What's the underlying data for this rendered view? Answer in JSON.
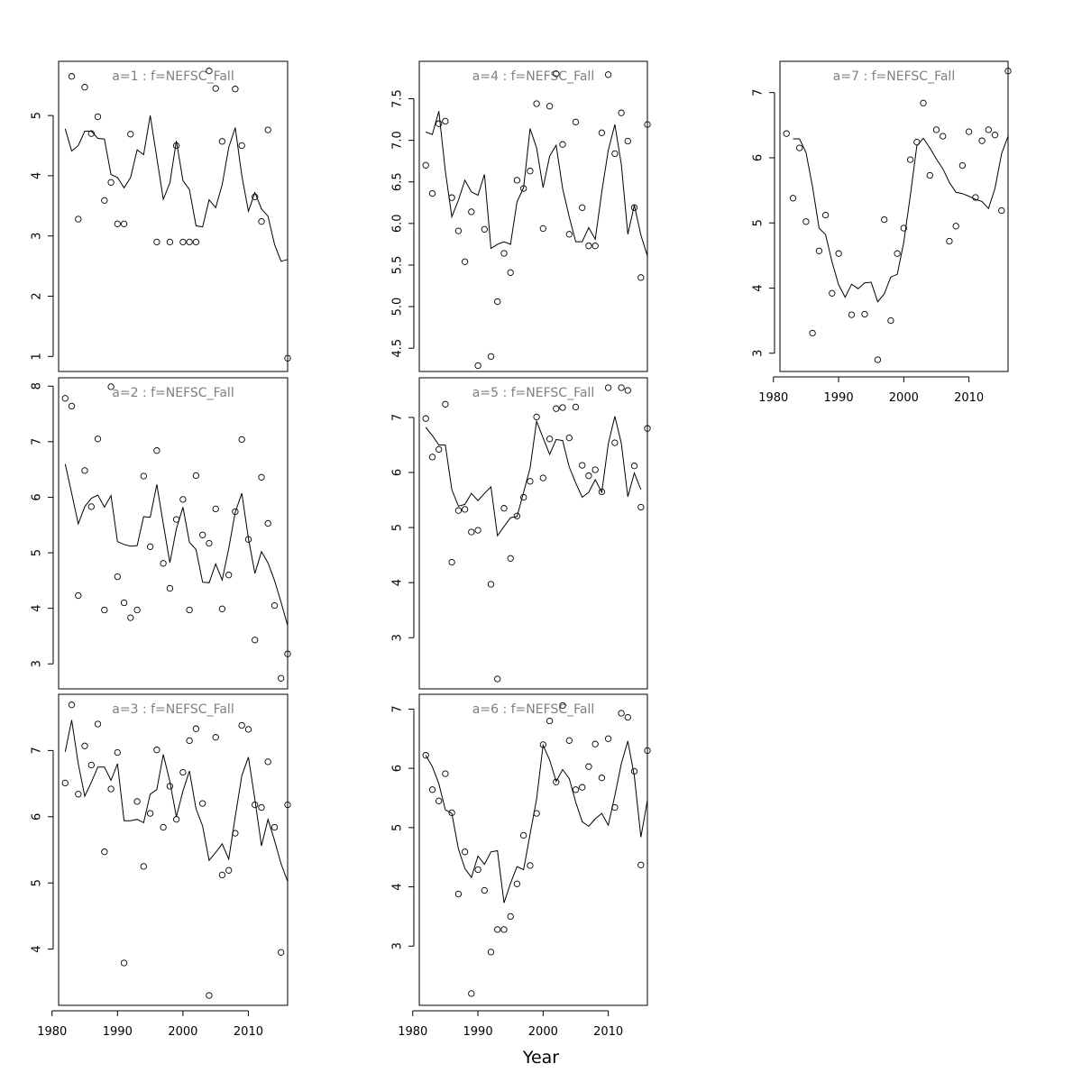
{
  "xlabel": "Year",
  "chart_data": [
    {
      "title": "a=1 : f=NEFSC_Fall",
      "type": "scatter+line",
      "xlim": [
        1981,
        2016
      ],
      "ylim": [
        0.75,
        5.9
      ],
      "yticks": [
        1,
        2,
        3,
        4,
        5
      ],
      "show_x_axis": false,
      "x": [
        1982,
        1983,
        1984,
        1985,
        1986,
        1987,
        1988,
        1989,
        1990,
        1991,
        1992,
        1993,
        1994,
        1995,
        1996,
        1997,
        1998,
        1999,
        2000,
        2001,
        2002,
        2003,
        2004,
        2005,
        2006,
        2007,
        2008,
        2009,
        2010,
        2011,
        2012,
        2013,
        2014,
        2015,
        2016
      ],
      "observed": [
        null,
        5.65,
        3.28,
        5.47,
        4.7,
        4.98,
        3.59,
        3.89,
        3.2,
        3.2,
        4.69,
        null,
        null,
        null,
        2.9,
        null,
        2.9,
        4.5,
        2.9,
        2.9,
        2.9,
        null,
        5.74,
        5.45,
        4.57,
        null,
        5.44,
        4.5,
        null,
        3.65,
        3.24,
        4.76,
        null,
        null,
        0.97
      ],
      "predicted": [
        4.78,
        4.41,
        4.5,
        4.74,
        4.74,
        4.62,
        4.61,
        4.02,
        3.97,
        3.8,
        3.97,
        4.43,
        4.35,
        5.0,
        4.3,
        3.61,
        3.88,
        4.58,
        3.92,
        3.77,
        3.17,
        3.15,
        3.6,
        3.47,
        3.85,
        4.47,
        4.8,
        4.0,
        3.41,
        3.72,
        3.45,
        3.33,
        2.86,
        2.58,
        2.61
      ]
    },
    {
      "title": "a=2 : f=NEFSC_Fall",
      "type": "scatter+line",
      "xlim": [
        1981,
        2016
      ],
      "ylim": [
        2.55,
        8.15
      ],
      "yticks": [
        3,
        4,
        5,
        6,
        7,
        8
      ],
      "show_x_axis": false,
      "x": [
        1982,
        1983,
        1984,
        1985,
        1986,
        1987,
        1988,
        1989,
        1990,
        1991,
        1992,
        1993,
        1994,
        1995,
        1996,
        1997,
        1998,
        1999,
        2000,
        2001,
        2002,
        2003,
        2004,
        2005,
        2006,
        2007,
        2008,
        2009,
        2010,
        2011,
        2012,
        2013,
        2014,
        2015,
        2016
      ],
      "observed": [
        7.78,
        7.64,
        4.23,
        6.48,
        5.83,
        7.05,
        3.97,
        7.99,
        4.57,
        4.1,
        3.83,
        3.97,
        6.38,
        5.11,
        6.84,
        4.81,
        4.36,
        5.6,
        5.96,
        3.97,
        6.39,
        5.32,
        5.17,
        5.79,
        3.99,
        4.6,
        5.74,
        7.04,
        5.24,
        3.43,
        6.36,
        5.53,
        4.05,
        2.74,
        3.18
      ],
      "predicted": [
        6.6,
        6.07,
        5.52,
        5.83,
        5.98,
        6.04,
        5.82,
        6.03,
        5.2,
        5.15,
        5.12,
        5.13,
        5.65,
        5.64,
        6.23,
        5.52,
        4.82,
        5.43,
        5.82,
        5.19,
        5.06,
        4.47,
        4.46,
        4.8,
        4.51,
        5.08,
        5.73,
        6.07,
        5.26,
        4.63,
        5.02,
        4.82,
        4.5,
        4.11,
        3.69
      ]
    },
    {
      "title": "a=3 : f=NEFSC_Fall",
      "type": "scatter+line",
      "xlim": [
        1981,
        2016
      ],
      "ylim": [
        3.15,
        7.85
      ],
      "yticks": [
        4,
        5,
        6,
        7
      ],
      "show_x_axis": true,
      "xticks": [
        1980,
        1990,
        2000,
        2010
      ],
      "x": [
        1982,
        1983,
        1984,
        1985,
        1986,
        1987,
        1988,
        1989,
        1990,
        1991,
        1992,
        1993,
        1994,
        1995,
        1996,
        1997,
        1998,
        1999,
        2000,
        2001,
        2002,
        2003,
        2004,
        2005,
        2006,
        2007,
        2008,
        2009,
        2010,
        2011,
        2012,
        2013,
        2014,
        2015,
        2016
      ],
      "observed": [
        6.51,
        7.69,
        6.34,
        7.07,
        6.78,
        7.4,
        5.47,
        6.42,
        6.97,
        3.79,
        null,
        6.23,
        5.25,
        6.05,
        7.01,
        5.84,
        6.46,
        5.96,
        6.67,
        7.15,
        7.33,
        6.2,
        3.3,
        7.2,
        5.12,
        5.19,
        5.75,
        7.38,
        7.32,
        6.18,
        6.14,
        6.83,
        5.84,
        3.95,
        6.18
      ],
      "predicted": [
        6.98,
        7.46,
        6.8,
        6.31,
        6.52,
        6.75,
        6.75,
        6.55,
        6.8,
        5.94,
        5.94,
        5.96,
        5.91,
        6.34,
        6.41,
        6.94,
        6.53,
        6.0,
        6.39,
        6.69,
        6.12,
        5.86,
        5.34,
        5.46,
        5.59,
        5.36,
        6.0,
        6.62,
        6.9,
        6.26,
        5.56,
        5.96,
        5.64,
        5.29,
        5.02
      ]
    },
    {
      "title": "a=4 : f=NEFSC_Fall",
      "type": "scatter+line",
      "xlim": [
        1981,
        2016
      ],
      "ylim": [
        4.22,
        7.95
      ],
      "yticks": [
        4.5,
        5.0,
        5.5,
        6.0,
        6.5,
        7.0,
        7.5
      ],
      "ytick_labels": [
        "4.5",
        "5.0",
        "5.5",
        "6.0",
        "6.5",
        "7.0",
        "7.5"
      ],
      "show_x_axis": false,
      "x": [
        1982,
        1983,
        1984,
        1985,
        1986,
        1987,
        1988,
        1989,
        1990,
        1991,
        1992,
        1993,
        1994,
        1995,
        1996,
        1997,
        1998,
        1999,
        2000,
        2001,
        2002,
        2003,
        2004,
        2005,
        2006,
        2007,
        2008,
        2009,
        2010,
        2011,
        2012,
        2013,
        2014,
        2015,
        2016
      ],
      "observed": [
        6.7,
        6.36,
        7.2,
        7.23,
        6.31,
        5.91,
        5.54,
        6.14,
        4.29,
        5.93,
        4.4,
        5.06,
        5.64,
        5.41,
        6.52,
        6.42,
        6.63,
        7.44,
        5.94,
        7.41,
        7.8,
        6.95,
        5.87,
        7.22,
        6.19,
        5.73,
        5.73,
        7.09,
        7.79,
        6.84,
        7.33,
        6.99,
        6.19,
        5.35,
        7.19
      ],
      "predicted": [
        7.1,
        7.07,
        7.35,
        6.63,
        6.08,
        6.28,
        6.52,
        6.38,
        6.34,
        6.59,
        5.7,
        5.75,
        5.78,
        5.75,
        6.26,
        6.43,
        7.14,
        6.91,
        6.43,
        6.81,
        6.94,
        6.42,
        6.08,
        5.78,
        5.78,
        5.95,
        5.81,
        6.38,
        6.88,
        7.19,
        6.71,
        5.87,
        6.22,
        5.86,
        5.61
      ]
    },
    {
      "title": "a=5 : f=NEFSC_Fall",
      "type": "scatter+line",
      "xlim": [
        1981,
        2016
      ],
      "ylim": [
        2.07,
        7.72
      ],
      "yticks": [
        3,
        4,
        5,
        6,
        7
      ],
      "show_x_axis": false,
      "x": [
        1982,
        1983,
        1984,
        1985,
        1986,
        1987,
        1988,
        1989,
        1990,
        1991,
        1992,
        1993,
        1994,
        1995,
        1996,
        1997,
        1998,
        1999,
        2000,
        2001,
        2002,
        2003,
        2004,
        2005,
        2006,
        2007,
        2008,
        2009,
        2010,
        2011,
        2012,
        2013,
        2014,
        2015,
        2016
      ],
      "observed": [
        6.98,
        6.28,
        6.42,
        7.24,
        4.37,
        5.31,
        5.33,
        4.92,
        4.95,
        null,
        3.97,
        2.25,
        5.35,
        4.44,
        5.21,
        5.55,
        5.84,
        7.01,
        5.9,
        6.61,
        7.16,
        7.18,
        6.63,
        7.19,
        6.13,
        5.94,
        6.05,
        5.65,
        7.54,
        6.54,
        7.54,
        7.49,
        6.12,
        5.37,
        6.8
      ],
      "predicted": [
        6.82,
        6.67,
        6.5,
        6.5,
        5.69,
        5.39,
        5.42,
        5.62,
        5.49,
        5.62,
        5.74,
        4.85,
        5.02,
        5.18,
        5.2,
        5.64,
        6.08,
        6.93,
        6.63,
        6.33,
        6.6,
        6.58,
        6.1,
        5.81,
        5.55,
        5.64,
        5.87,
        5.64,
        6.52,
        7.02,
        6.53,
        5.56,
        5.99,
        5.69,
        null
      ]
    },
    {
      "title": "a=6 : f=NEFSC_Fall",
      "type": "scatter+line",
      "xlim": [
        1981,
        2016
      ],
      "ylim": [
        2.0,
        7.25
      ],
      "yticks": [
        3,
        4,
        5,
        6,
        7
      ],
      "show_x_axis": true,
      "xticks": [
        1980,
        1990,
        2000,
        2010
      ],
      "x": [
        1982,
        1983,
        1984,
        1985,
        1986,
        1987,
        1988,
        1989,
        1990,
        1991,
        1992,
        1993,
        1994,
        1995,
        1996,
        1997,
        1998,
        1999,
        2000,
        2001,
        2002,
        2003,
        2004,
        2005,
        2006,
        2007,
        2008,
        2009,
        2010,
        2011,
        2012,
        2013,
        2014,
        2015,
        2016
      ],
      "observed": [
        6.22,
        5.64,
        5.45,
        5.91,
        5.25,
        3.88,
        4.59,
        2.2,
        4.29,
        3.94,
        2.9,
        3.28,
        3.28,
        3.5,
        4.05,
        4.87,
        4.36,
        5.24,
        6.4,
        6.8,
        5.77,
        7.06,
        6.47,
        5.64,
        5.68,
        6.03,
        6.41,
        5.84,
        6.5,
        5.34,
        6.93,
        6.86,
        5.95,
        4.37,
        6.3
      ],
      "predicted": [
        6.22,
        6.03,
        5.74,
        5.3,
        5.24,
        4.64,
        4.31,
        4.16,
        4.52,
        4.38,
        4.59,
        4.61,
        3.73,
        4.06,
        4.34,
        4.29,
        4.89,
        5.48,
        6.39,
        6.14,
        5.78,
        5.98,
        5.83,
        5.43,
        5.1,
        5.02,
        5.15,
        5.24,
        5.04,
        5.54,
        6.08,
        6.46,
        5.87,
        4.84,
        5.46
      ]
    },
    {
      "title": "a=7 : f=NEFSC_Fall",
      "type": "scatter+line",
      "xlim": [
        1981,
        2016
      ],
      "ylim": [
        2.72,
        7.48
      ],
      "yticks": [
        3,
        4,
        5,
        6,
        7
      ],
      "show_x_axis": true,
      "xticks": [
        1980,
        1990,
        2000,
        2010
      ],
      "x": [
        1982,
        1983,
        1984,
        1985,
        1986,
        1987,
        1988,
        1989,
        1990,
        1991,
        1992,
        1993,
        1994,
        1995,
        1996,
        1997,
        1998,
        1999,
        2000,
        2001,
        2002,
        2003,
        2004,
        2005,
        2006,
        2007,
        2008,
        2009,
        2010,
        2011,
        2012,
        2013,
        2014,
        2015,
        2016
      ],
      "observed": [
        6.37,
        5.38,
        6.15,
        5.02,
        3.31,
        4.57,
        5.12,
        3.92,
        4.53,
        null,
        3.59,
        null,
        3.6,
        null,
        2.9,
        5.05,
        3.5,
        4.53,
        4.92,
        5.97,
        6.24,
        6.84,
        5.73,
        6.43,
        6.33,
        4.72,
        4.95,
        5.88,
        6.4,
        5.39,
        6.26,
        6.43,
        6.35,
        5.19,
        7.33
      ],
      "predicted": [
        null,
        6.29,
        6.29,
        6.08,
        5.56,
        4.92,
        4.82,
        4.4,
        4.05,
        3.86,
        4.06,
        3.99,
        4.08,
        4.09,
        3.79,
        3.91,
        4.17,
        4.21,
        4.7,
        5.42,
        6.18,
        6.3,
        6.15,
        5.98,
        5.83,
        5.62,
        5.47,
        5.45,
        5.41,
        5.36,
        5.33,
        5.22,
        5.53,
        6.06,
        6.33
      ]
    }
  ]
}
